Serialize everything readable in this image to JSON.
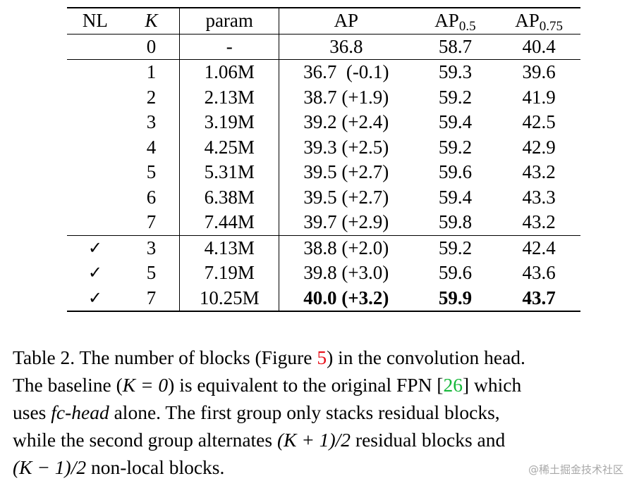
{
  "table": {
    "headers": {
      "nl": "NL",
      "k": "K",
      "param": "param",
      "ap": "AP",
      "ap5_base": "AP",
      "ap5_sub": "0.5",
      "ap75_base": "AP",
      "ap75_sub": "0.75"
    },
    "baseline": {
      "nl": "",
      "k": "0",
      "param": "-",
      "ap": "36.8",
      "ap5": "58.7",
      "ap75": "40.4"
    },
    "group1": [
      {
        "nl": "",
        "k": "1",
        "param": "1.06M",
        "ap": "36.7  (-0.1)",
        "ap5": "59.3",
        "ap75": "39.6"
      },
      {
        "nl": "",
        "k": "2",
        "param": "2.13M",
        "ap": "38.7 (+1.9)",
        "ap5": "59.2",
        "ap75": "41.9"
      },
      {
        "nl": "",
        "k": "3",
        "param": "3.19M",
        "ap": "39.2 (+2.4)",
        "ap5": "59.4",
        "ap75": "42.5"
      },
      {
        "nl": "",
        "k": "4",
        "param": "4.25M",
        "ap": "39.3 (+2.5)",
        "ap5": "59.2",
        "ap75": "42.9"
      },
      {
        "nl": "",
        "k": "5",
        "param": "5.31M",
        "ap": "39.5 (+2.7)",
        "ap5": "59.6",
        "ap75": "43.2"
      },
      {
        "nl": "",
        "k": "6",
        "param": "6.38M",
        "ap": "39.5 (+2.7)",
        "ap5": "59.4",
        "ap75": "43.3"
      },
      {
        "nl": "",
        "k": "7",
        "param": "7.44M",
        "ap": "39.7 (+2.9)",
        "ap5": "59.8",
        "ap75": "43.2"
      }
    ],
    "group2": [
      {
        "nl": "✓",
        "k": "3",
        "param": "4.13M",
        "ap": "38.8 (+2.0)",
        "ap5": "59.2",
        "ap75": "42.4"
      },
      {
        "nl": "✓",
        "k": "5",
        "param": "7.19M",
        "ap": "39.8 (+3.0)",
        "ap5": "59.6",
        "ap75": "43.6"
      },
      {
        "nl": "✓",
        "k": "7",
        "param": "10.25M",
        "ap": "40.0 (+3.2)",
        "ap5": "59.9",
        "ap75": "43.7"
      }
    ]
  },
  "caption": {
    "l1a": "Table 2. The number of blocks (Figure ",
    "l1ref": "5",
    "l1b": ") in the convolution head.",
    "l2a": "The baseline (",
    "l2math": "K = 0",
    "l2b": ") is equivalent to the original FPN [",
    "l2ref": "26",
    "l2c": "] which",
    "l3a": "uses ",
    "l3em": "fc-head",
    "l3b": " alone.  The first group only stacks residual blocks,",
    "l4a": "while the second group alternates ",
    "l4math": "(K + 1)/2",
    "l4b": " residual blocks and",
    "l5math": "(K − 1)/2",
    "l5b": " non-local blocks."
  },
  "watermark": "@稀土掘金技术社区"
}
